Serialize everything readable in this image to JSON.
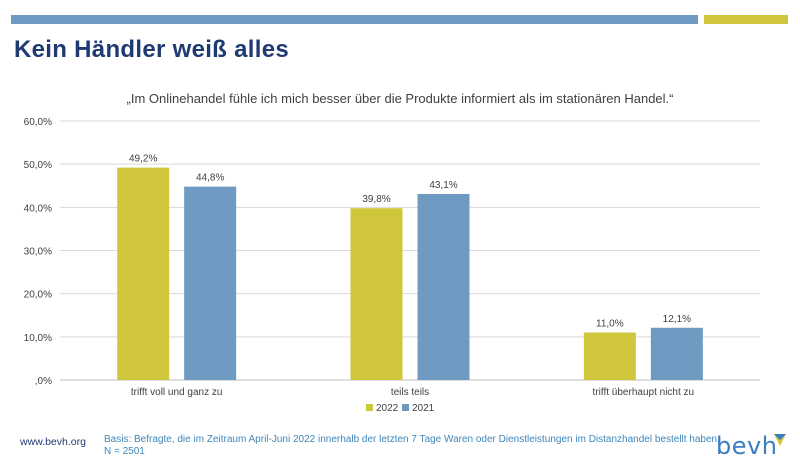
{
  "header": {
    "title": "Kein Händler weiß alles"
  },
  "colors": {
    "bar_blue": "#6f9ac2",
    "bar_yellow": "#d0c63b",
    "title_blue": "#1f3a72",
    "note_blue": "#3e86b8"
  },
  "chart_data": {
    "type": "bar",
    "title": "„Im Onlinehandel fühle ich mich besser über die Produkte informiert als im stationären Handel.“",
    "categories": [
      "trifft voll und ganz zu",
      "teils teils",
      "trifft überhaupt nicht zu"
    ],
    "series": [
      {
        "name": "2022",
        "values": [
          49.2,
          39.8,
          11.0
        ],
        "labels": [
          "49,2%",
          "39,8%",
          "11,0%"
        ],
        "color": "#d0c63b"
      },
      {
        "name": "2021",
        "values": [
          44.8,
          43.1,
          12.1
        ],
        "labels": [
          "44,8%",
          "43,1%",
          "12,1%"
        ],
        "color": "#6f9ac2"
      }
    ],
    "ylim": [
      0,
      60
    ],
    "yticks": [
      0,
      10,
      20,
      30,
      40,
      50,
      60
    ],
    "ytick_labels": [
      ",0%",
      "10,0%",
      "20,0%",
      "30,0%",
      "40,0%",
      "50,0%",
      "60,0%"
    ],
    "grid": true,
    "legend_position": "bottom"
  },
  "footer": {
    "url": "www.bevh.org",
    "note_line1": "Basis: Befragte, die im Zeitraum April-Juni 2022 innerhalb der letzten 7 Tage Waren oder Dienstleistungen im Distanzhandel bestellt haben.",
    "note_line2": "N = 2501",
    "logo_text": "bevh"
  }
}
